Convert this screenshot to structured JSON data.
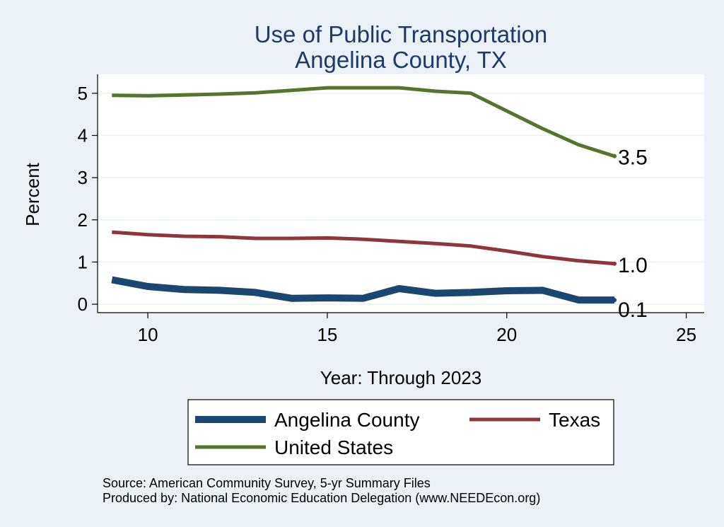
{
  "chart_data": {
    "type": "line",
    "title": [
      "Use of Public Transportation",
      "Angelina County, TX"
    ],
    "xlabel": "Year: Through 2023",
    "ylabel": "Percent",
    "xlim": [
      8.6,
      25.5
    ],
    "ylim": [
      -0.2,
      5.45
    ],
    "x_ticks": [
      10,
      15,
      20,
      25
    ],
    "y_ticks": [
      0,
      1,
      2,
      3,
      4,
      5
    ],
    "grid": true,
    "legend_position": "bottom",
    "series": [
      {
        "name": "Angelina County",
        "color": "#1a476f",
        "line_width": "thick",
        "x": [
          9,
          10,
          11,
          12,
          13,
          14,
          15,
          16,
          17,
          18,
          19,
          20,
          21,
          22,
          23
        ],
        "values": [
          0.58,
          0.42,
          0.35,
          0.33,
          0.28,
          0.14,
          0.15,
          0.14,
          0.37,
          0.26,
          0.28,
          0.32,
          0.33,
          0.1,
          0.1
        ],
        "end_label": "0.1"
      },
      {
        "name": "Texas",
        "color": "#90353b",
        "line_width": "medium",
        "x": [
          9,
          10,
          11,
          12,
          13,
          14,
          15,
          16,
          17,
          18,
          19,
          20,
          21,
          22,
          23
        ],
        "values": [
          1.71,
          1.65,
          1.61,
          1.6,
          1.56,
          1.56,
          1.57,
          1.54,
          1.49,
          1.44,
          1.38,
          1.26,
          1.13,
          1.03,
          0.96
        ],
        "end_label": "1.0"
      },
      {
        "name": "United States",
        "color": "#55752f",
        "line_width": "medium",
        "x": [
          9,
          10,
          11,
          12,
          13,
          14,
          15,
          16,
          17,
          18,
          19,
          20,
          21,
          22,
          23
        ],
        "values": [
          4.95,
          4.94,
          4.96,
          4.98,
          5.01,
          5.07,
          5.13,
          5.13,
          5.13,
          5.05,
          5.0,
          4.58,
          4.16,
          3.78,
          3.51
        ],
        "end_label": "3.5"
      }
    ],
    "notes": [
      "Source: American Community Survey, 5-yr Summary Files",
      "Produced by: National Economic Education Delegation (www.NEEDEcon.org)"
    ]
  }
}
